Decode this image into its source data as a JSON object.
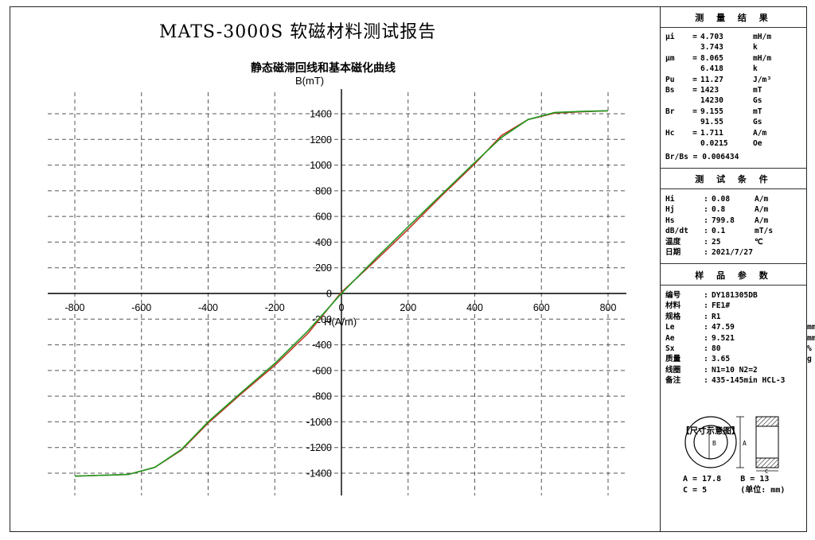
{
  "report": {
    "title": "MATS-3000S 软磁材料测试报告",
    "subtitle": "静态磁滞回线和基本磁化曲线"
  },
  "results": {
    "heading": "测 量 结 果",
    "rows": [
      {
        "k": "μi",
        "s": "=",
        "v": "4.703",
        "u": "mH/m"
      },
      {
        "k": "",
        "s": "",
        "v": "3.743",
        "u": "k"
      },
      {
        "k": "μm",
        "s": "=",
        "v": "8.065",
        "u": "mH/m"
      },
      {
        "k": "",
        "s": "",
        "v": "6.418",
        "u": "k"
      },
      {
        "k": "Pu",
        "s": "=",
        "v": "11.27",
        "u": "J/m³"
      },
      {
        "k": "Bs",
        "s": "=",
        "v": "1423",
        "u": "mT"
      },
      {
        "k": "",
        "s": "",
        "v": "14230",
        "u": "Gs"
      },
      {
        "k": "Br",
        "s": "=",
        "v": "9.155",
        "u": "mT"
      },
      {
        "k": "",
        "s": "",
        "v": "91.55",
        "u": "Gs"
      },
      {
        "k": "Hc",
        "s": "=",
        "v": "1.711",
        "u": "A/m"
      },
      {
        "k": "",
        "s": "",
        "v": "0.0215",
        "u": "Oe"
      }
    ],
    "ratio": "Br/Bs = 0.006434"
  },
  "conditions": {
    "heading": "测 试 条 件",
    "rows": [
      {
        "k": "Hi",
        "s": ":",
        "v": "0.08",
        "u": "A/m"
      },
      {
        "k": "Hj",
        "s": ":",
        "v": "0.8",
        "u": "A/m"
      },
      {
        "k": "Hs",
        "s": ":",
        "v": "799.8",
        "u": "A/m"
      },
      {
        "k": "dB/dt",
        "s": ":",
        "v": "0.1",
        "u": "mT/s"
      },
      {
        "k": "温度",
        "s": ":",
        "v": "25",
        "u": "℃"
      },
      {
        "k": "日期",
        "s": ":",
        "v": "2021/7/27",
        "u": ""
      }
    ]
  },
  "sample": {
    "heading": "样 品 参 数",
    "rows": [
      {
        "k": "编号",
        "s": ":",
        "v": "DY181305DB",
        "u": ""
      },
      {
        "k": "材料",
        "s": ":",
        "v": "FE1#",
        "u": ""
      },
      {
        "k": "规格",
        "s": ":",
        "v": "R1",
        "u": ""
      },
      {
        "k": "Le",
        "s": ":",
        "v": "47.59",
        "u": "mm"
      },
      {
        "k": "Ae",
        "s": ":",
        "v": "9.521",
        "u": "mm²"
      },
      {
        "k": "Sx",
        "s": ":",
        "v": "80",
        "u": "%"
      },
      {
        "k": "质量",
        "s": ":",
        "v": "3.65",
        "u": "g"
      },
      {
        "k": "线圈",
        "s": ":",
        "v": "N1=10 N2=2",
        "u": ""
      },
      {
        "k": "备注",
        "s": ":",
        "v": "435-145min HCL-3",
        "u": ""
      }
    ],
    "figure_title": "【尺寸示意图】",
    "figure_labels": {
      "b": "B",
      "a": "A",
      "c": "C"
    },
    "dims_line1": "A = 17.8    B = 13",
    "dims_line2": "C = 5       (单位: mm)"
  },
  "colors": {
    "hysteresis": "#c0392b",
    "magnetization": "#1f9a1f",
    "grid": "#555555"
  },
  "chart_data": {
    "type": "line",
    "title": "静态磁滞回线和基本磁化曲线",
    "xlabel": "H(A/m)",
    "ylabel": "B(mT)",
    "xlim": [
      -800,
      800
    ],
    "ylim": [
      -1400,
      1400
    ],
    "xticks": [
      -800,
      -600,
      -400,
      -200,
      0,
      200,
      400,
      600,
      800
    ],
    "yticks": [
      -1400,
      -1200,
      -1000,
      -800,
      -600,
      -400,
      -200,
      0,
      200,
      400,
      600,
      800,
      1000,
      1200,
      1400
    ],
    "grid": true,
    "series": [
      {
        "color": "#c0392b",
        "x": [
          -800,
          -640,
          -560,
          -480,
          -400,
          -300,
          -200,
          -100,
          0,
          100,
          200,
          300,
          400,
          480,
          560,
          640,
          720,
          800
        ],
        "y": [
          -1423,
          -1410,
          -1355,
          -1220,
          -1010,
          -780,
          -560,
          -310,
          9,
          250,
          500,
          760,
          1010,
          1230,
          1355,
          1405,
          1415,
          1423
        ]
      },
      {
        "color": "#1f9a1f",
        "x": [
          -800,
          -640,
          -560,
          -480,
          -400,
          -300,
          -200,
          -100,
          0,
          100,
          200,
          300,
          400,
          480,
          560,
          640,
          720,
          800
        ],
        "y": [
          -1423,
          -1410,
          -1355,
          -1215,
          -1000,
          -770,
          -545,
          -290,
          0,
          265,
          520,
          770,
          1020,
          1215,
          1355,
          1410,
          1418,
          1423
        ]
      }
    ]
  }
}
